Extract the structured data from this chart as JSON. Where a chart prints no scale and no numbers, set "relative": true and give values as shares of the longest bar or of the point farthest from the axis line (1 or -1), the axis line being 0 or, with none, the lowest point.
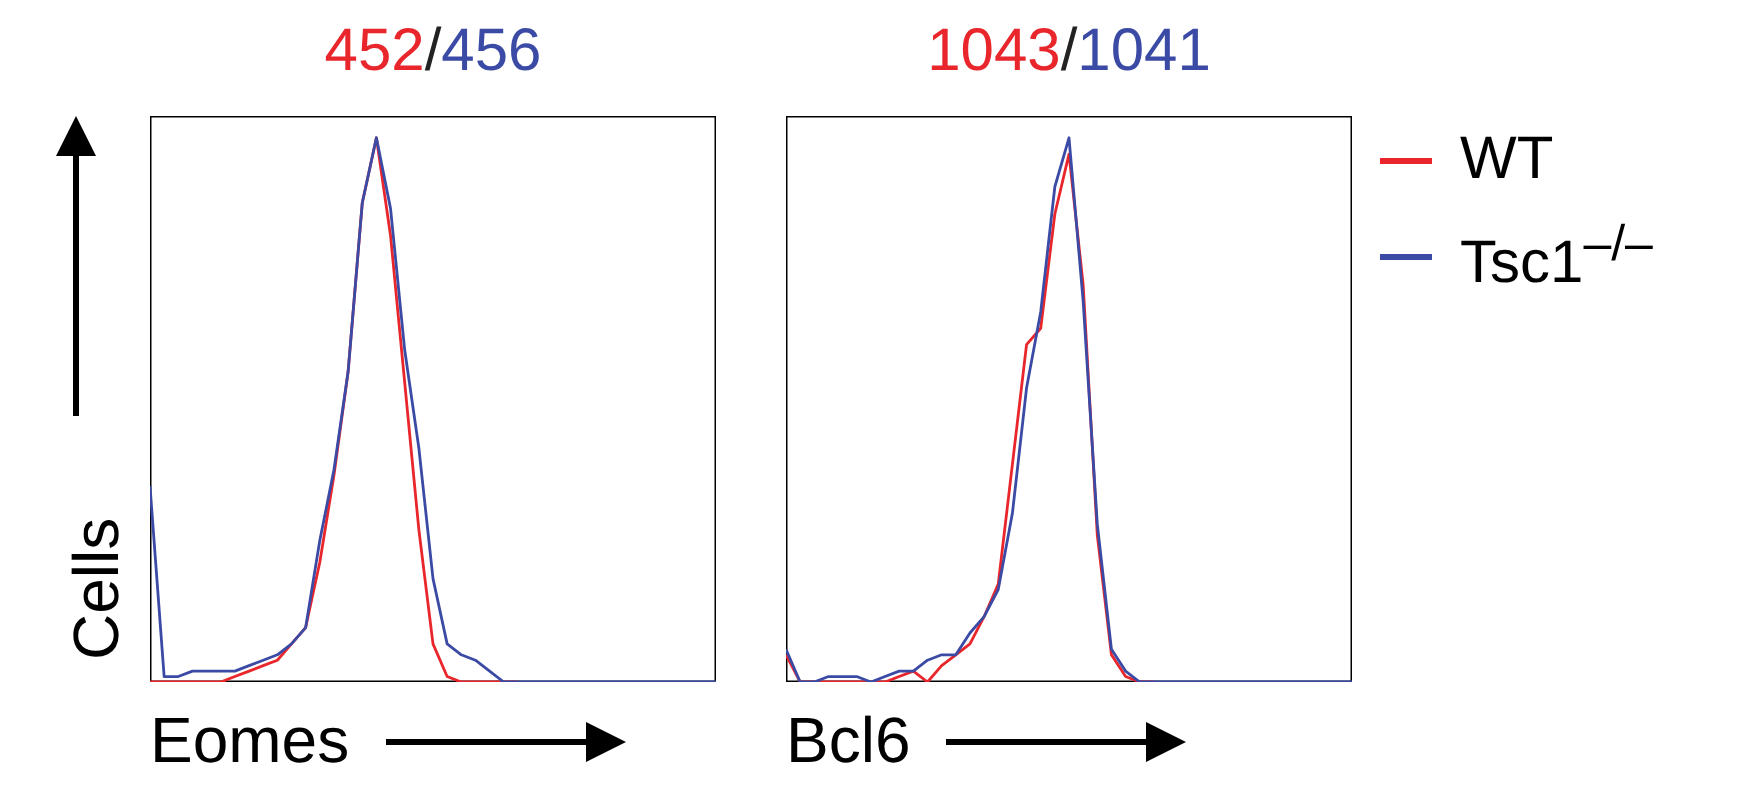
{
  "chart_data": [
    {
      "type": "line",
      "title": "452/456",
      "xlabel": "Eomes",
      "ylabel": "Cells",
      "relative": true,
      "categories": [
        null,
        null,
        null,
        null,
        null,
        null,
        null,
        null,
        null,
        null,
        null,
        null,
        null,
        null,
        null,
        null,
        null,
        null,
        null,
        null,
        null,
        null,
        null,
        null,
        null,
        null,
        null,
        null,
        null,
        null,
        null,
        null,
        null,
        null,
        null,
        null,
        null,
        null,
        null,
        null,
        null
      ],
      "series": [
        {
          "color": "#e8262b",
          "values": [
            0,
            0,
            0,
            0,
            0,
            0,
            0.01,
            0.02,
            0.03,
            0.04,
            0.07,
            0.1,
            0.22,
            0.38,
            0.57,
            0.88,
            1.0,
            0.82,
            0.55,
            0.28,
            0.07,
            0.01,
            0,
            0,
            0,
            0,
            0,
            null,
            null,
            null,
            null,
            null,
            null,
            null,
            null,
            null,
            null,
            null,
            null,
            null,
            null
          ]
        },
        {
          "color": "#3b4ba5",
          "values": [
            0.36,
            0.01,
            0.01,
            0.02,
            0.02,
            0.02,
            0.02,
            0.03,
            0.04,
            0.05,
            0.07,
            0.1,
            0.26,
            0.39,
            0.57,
            0.88,
            1.0,
            0.87,
            0.61,
            0.43,
            0.19,
            0.07,
            0.05,
            0.04,
            0.02,
            0,
            0,
            0,
            0,
            0,
            0,
            0,
            0,
            0,
            0,
            0,
            0,
            0,
            0,
            0,
            0
          ]
        }
      ]
    },
    {
      "type": "line",
      "title": "1043/1041",
      "xlabel": "Bcl6",
      "relative": true,
      "legend": "right",
      "categories": [
        null,
        null,
        null,
        null,
        null,
        null,
        null,
        null,
        null,
        null,
        null,
        null,
        null,
        null,
        null,
        null,
        null,
        null,
        null,
        null,
        null,
        null,
        null,
        null,
        null,
        null,
        null,
        null,
        null,
        null,
        null,
        null,
        null,
        null,
        null,
        null,
        null,
        null,
        null,
        null,
        null
      ],
      "series": [
        {
          "name": "WT",
          "color": "#e8262b",
          "values": [
            0.05,
            0,
            0,
            0,
            0,
            0,
            0,
            0,
            0.01,
            0.02,
            0,
            0.03,
            0.05,
            0.07,
            0.12,
            0.18,
            0.4,
            0.62,
            0.65,
            0.86,
            0.97,
            0.73,
            0.27,
            0.05,
            0.01,
            0,
            0,
            null,
            null,
            null,
            null,
            null,
            null,
            null,
            null,
            null,
            null,
            null,
            null,
            null,
            null
          ]
        },
        {
          "name": "Tsc1$^{–/–}$",
          "color": "#3b4ba5",
          "values": [
            0.06,
            0,
            0,
            0.01,
            0.01,
            0.01,
            0,
            0.01,
            0.02,
            0.02,
            0.04,
            0.05,
            0.05,
            0.09,
            0.12,
            0.17,
            0.31,
            0.54,
            0.68,
            0.91,
            1.0,
            0.7,
            0.29,
            0.06,
            0.02,
            0,
            0,
            0,
            0,
            0,
            0,
            0,
            0,
            0,
            0,
            0,
            0,
            0,
            0,
            0,
            0
          ]
        }
      ]
    }
  ]
}
